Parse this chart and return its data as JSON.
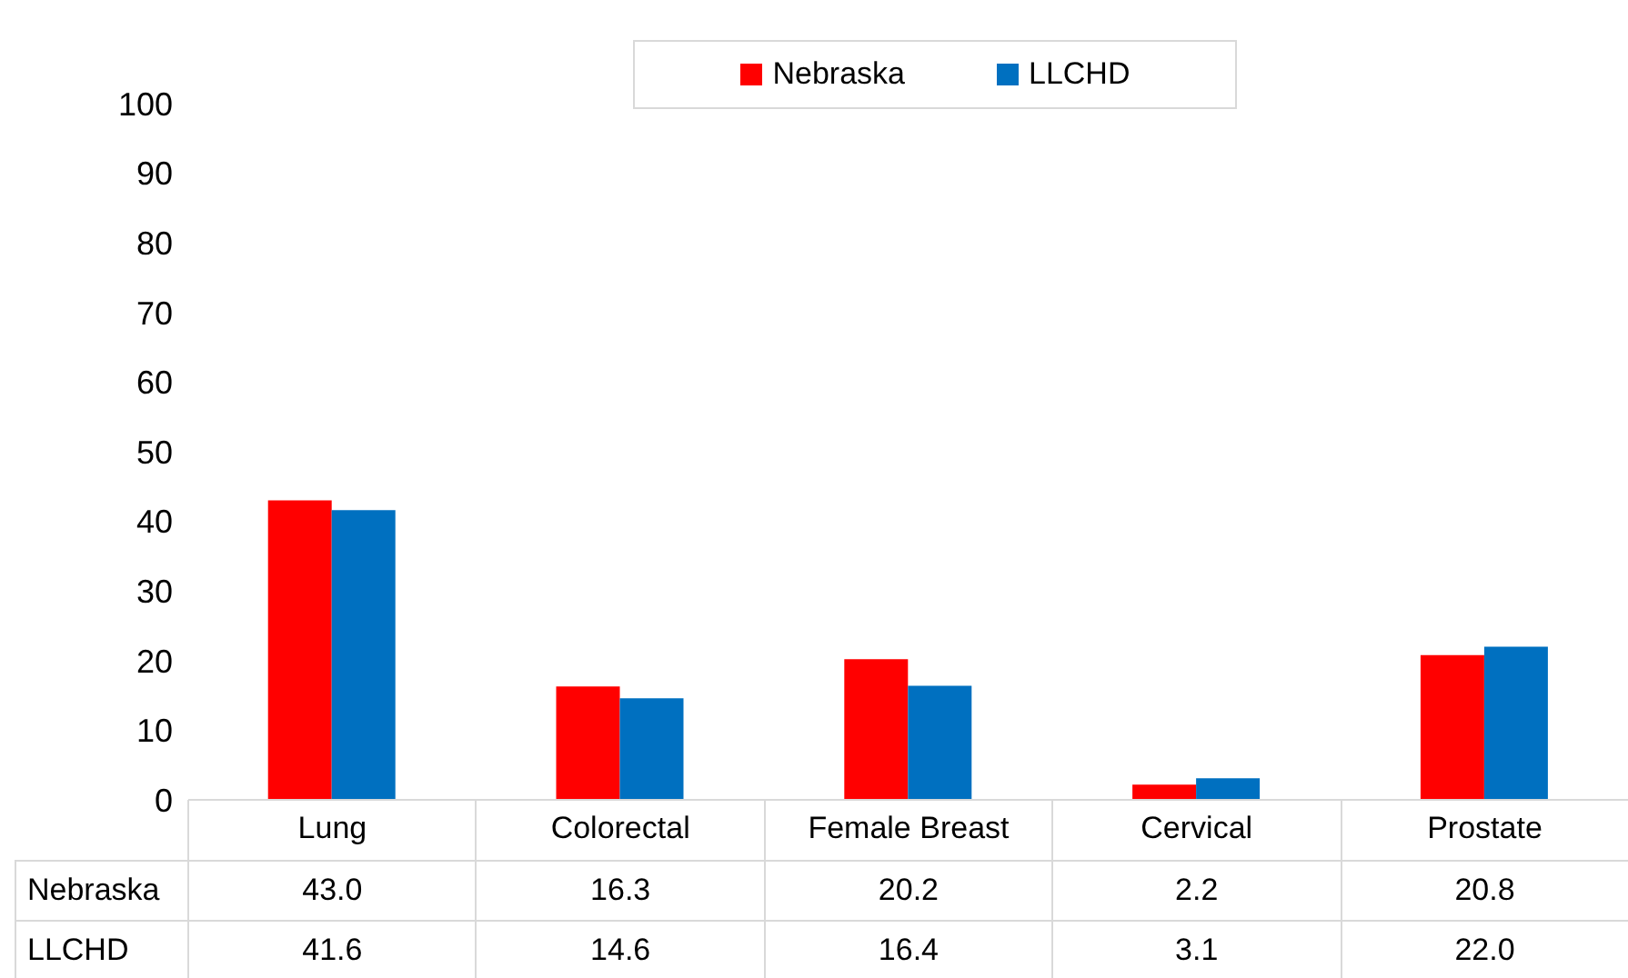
{
  "chart_data": {
    "type": "bar",
    "categories": [
      "Lung",
      "Colorectal",
      "Female Breast",
      "Cervical",
      "Prostate"
    ],
    "series": [
      {
        "name": "Nebraska",
        "color": "#ff0000",
        "values": [
          43.0,
          16.3,
          20.2,
          2.2,
          20.8
        ],
        "value_labels": [
          "43.0",
          "16.3",
          "20.2",
          "2.2",
          "20.8"
        ]
      },
      {
        "name": "LLCHD",
        "color": "#0070c0",
        "values": [
          41.6,
          14.6,
          16.4,
          3.1,
          22.0
        ],
        "value_labels": [
          "41.6",
          "14.6",
          "16.4",
          "3.1",
          "22.0"
        ]
      }
    ],
    "ylim": [
      0,
      100
    ],
    "yticks": [
      0,
      10,
      20,
      30,
      40,
      50,
      60,
      70,
      80,
      90,
      100
    ],
    "legend": "top"
  }
}
